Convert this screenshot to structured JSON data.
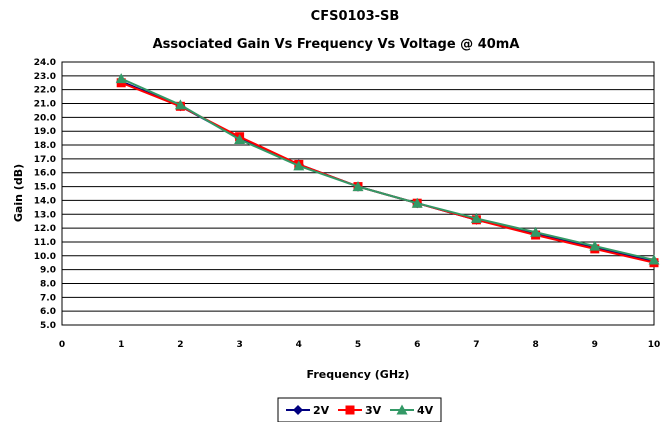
{
  "chart_data": {
    "type": "line",
    "title": "CFS0103-SB",
    "subtitle": "Associated Gain Vs Frequency Vs Voltage @ 40mA",
    "xlabel": "Frequency (GHz)",
    "ylabel": "Gain (dB)",
    "xlim": [
      0,
      10
    ],
    "ylim": [
      5,
      24
    ],
    "x_ticks": [
      "0",
      "1",
      "2",
      "3",
      "4",
      "5",
      "6",
      "7",
      "8",
      "9",
      "10"
    ],
    "y_ticks": [
      "5.0",
      "6.0",
      "7.0",
      "8.0",
      "9.0",
      "10.0",
      "11.0",
      "12.0",
      "13.0",
      "14.0",
      "15.0",
      "16.0",
      "17.0",
      "18.0",
      "19.0",
      "20.0",
      "21.0",
      "22.0",
      "23.0",
      "24.0"
    ],
    "grid": true,
    "legend_position": "bottom",
    "x": [
      1,
      2,
      3,
      4,
      5,
      6,
      7,
      8,
      9,
      10
    ],
    "series": [
      {
        "name": "2V",
        "color": "#000080",
        "marker": "diamond",
        "values": [
          22.6,
          20.8,
          18.5,
          16.6,
          15.0,
          13.8,
          12.6,
          11.6,
          10.6,
          9.6
        ]
      },
      {
        "name": "3V",
        "color": "#ff0000",
        "marker": "square",
        "values": [
          22.5,
          20.8,
          18.6,
          16.6,
          15.0,
          13.8,
          12.6,
          11.5,
          10.5,
          9.5
        ]
      },
      {
        "name": "4V",
        "color": "#339966",
        "marker": "triangle",
        "values": [
          22.8,
          20.9,
          18.4,
          16.5,
          15.0,
          13.8,
          12.7,
          11.7,
          10.7,
          9.7
        ]
      }
    ]
  }
}
